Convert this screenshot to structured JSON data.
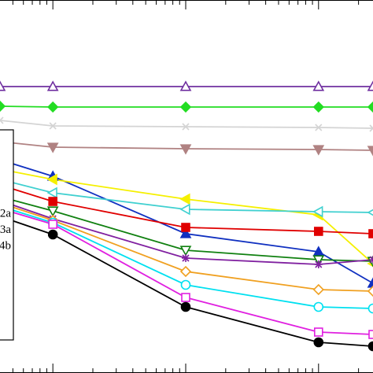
{
  "chart_data": {
    "type": "line",
    "xscale": "log",
    "x": [
      0.4,
      1,
      10,
      100,
      257
    ],
    "xlim": [
      0.4,
      257
    ],
    "xticks": [
      0.5,
      0.6,
      0.7,
      0.8,
      0.9,
      1,
      2,
      3,
      4,
      5,
      6,
      7,
      8,
      9,
      10,
      20,
      30,
      40,
      50,
      60,
      70,
      80,
      90,
      100,
      200
    ],
    "ylim": [
      0,
      474
    ],
    "legend": {
      "labels": [
        "2a",
        "3a",
        "4b"
      ],
      "corner": "left"
    },
    "series": [
      {
        "color": "#7030a0",
        "marker": "tri-up",
        "filled": false,
        "values": [
          364,
          364,
          364,
          364,
          364
        ]
      },
      {
        "color": "#22dd22",
        "marker": "diamond",
        "filled": true,
        "values": [
          339,
          338,
          338,
          338,
          338
        ]
      },
      {
        "color": "#d4d4d4",
        "marker": "x",
        "filled": false,
        "values": [
          321,
          314,
          313,
          312,
          311
        ]
      },
      {
        "color": "#b08282",
        "marker": "tri-down",
        "filled": true,
        "values": [
          294,
          287,
          285,
          284,
          283
        ]
      },
      {
        "color": "#1030c0",
        "marker": "tri-up",
        "filled": true,
        "values": [
          271,
          250,
          177,
          154,
          114
        ]
      },
      {
        "color": "#f5f000",
        "marker": "tri-left",
        "filled": true,
        "values": [
          259,
          246,
          221,
          201,
          139
        ]
      },
      {
        "color": "#40d0d0",
        "marker": "tri-left",
        "filled": false,
        "values": [
          246,
          229,
          208,
          205,
          204
        ]
      },
      {
        "color": "#e00000",
        "marker": "square",
        "filled": true,
        "values": [
          239,
          218,
          185,
          180,
          177
        ]
      },
      {
        "color": "#108010",
        "marker": "tri-down",
        "filled": false,
        "values": [
          224,
          206,
          156,
          144,
          142
        ]
      },
      {
        "color": "#8020a0",
        "marker": "asterisk",
        "filled": false,
        "values": [
          219,
          196,
          146,
          138,
          144
        ]
      },
      {
        "color": "#f0a020",
        "marker": "diamond",
        "filled": false,
        "values": [
          216,
          194,
          129,
          106,
          104
        ]
      },
      {
        "color": "#00e0f0",
        "marker": "circle",
        "filled": false,
        "values": [
          212,
          191,
          112,
          84,
          82
        ]
      },
      {
        "color": "#e020e0",
        "marker": "square",
        "filled": false,
        "values": [
          209,
          189,
          96,
          52,
          49
        ]
      },
      {
        "color": "#000000",
        "marker": "circle",
        "filled": true,
        "values": [
          199,
          176,
          84,
          39,
          34
        ]
      }
    ]
  }
}
